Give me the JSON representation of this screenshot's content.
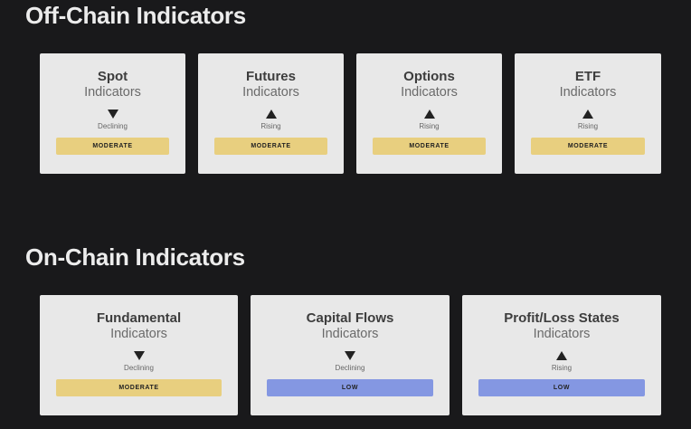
{
  "sections": [
    {
      "title": "Off-Chain Indicators",
      "cards": [
        {
          "title": "Spot",
          "subtitle": "Indicators",
          "trend": "Declining",
          "trend_icon": "triangle-down",
          "level": "MODERATE",
          "level_color": "#e8cf7f"
        },
        {
          "title": "Futures",
          "subtitle": "Indicators",
          "trend": "Rising",
          "trend_icon": "triangle-up",
          "level": "MODERATE",
          "level_color": "#e8cf7f"
        },
        {
          "title": "Options",
          "subtitle": "Indicators",
          "trend": "Rising",
          "trend_icon": "triangle-up",
          "level": "MODERATE",
          "level_color": "#e8cf7f"
        },
        {
          "title": "ETF",
          "subtitle": "Indicators",
          "trend": "Rising",
          "trend_icon": "triangle-up",
          "level": "MODERATE",
          "level_color": "#e8cf7f"
        }
      ]
    },
    {
      "title": "On-Chain Indicators",
      "cards": [
        {
          "title": "Fundamental",
          "subtitle": "Indicators",
          "trend": "Declining",
          "trend_icon": "triangle-down",
          "level": "MODERATE",
          "level_color": "#e8cf7f"
        },
        {
          "title": "Capital Flows",
          "subtitle": "Indicators",
          "trend": "Declining",
          "trend_icon": "triangle-down",
          "level": "LOW",
          "level_color": "#8497e2"
        },
        {
          "title": "Profit/Loss States",
          "subtitle": "Indicators",
          "trend": "Rising",
          "trend_icon": "triangle-up",
          "level": "LOW",
          "level_color": "#8497e2"
        }
      ]
    }
  ]
}
